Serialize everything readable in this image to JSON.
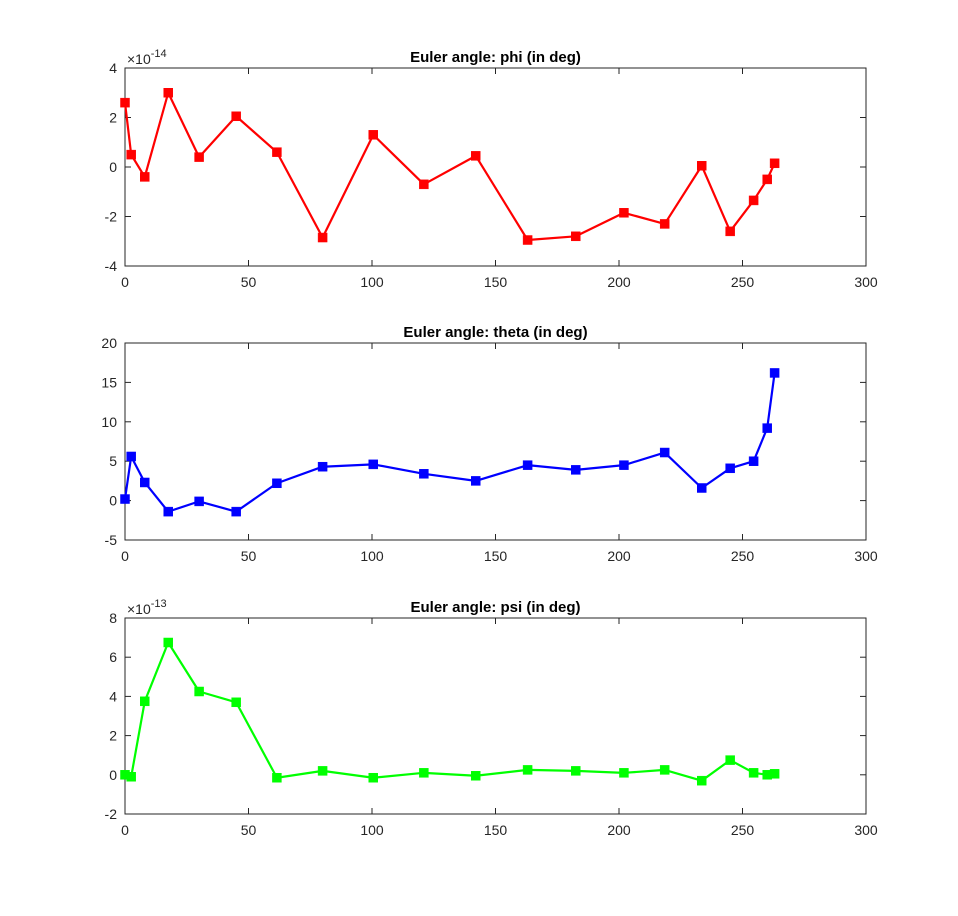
{
  "chart_data": [
    {
      "type": "line",
      "title": "Euler angle: phi (in deg)",
      "xlabel": "",
      "ylabel": "",
      "exponent_label": "×10",
      "exponent_power": "-14",
      "xlim": [
        0,
        300
      ],
      "ylim": [
        -4,
        4
      ],
      "xticks": [
        "0",
        "50",
        "100",
        "150",
        "200",
        "250",
        "300"
      ],
      "yticks": [
        "-4",
        "-2",
        "0",
        "2",
        "4"
      ],
      "color": "#ff0000",
      "marker": "square",
      "grid": false,
      "series": [
        {
          "x": [
            0,
            2.5,
            8,
            17.5,
            30,
            45,
            61.5,
            80,
            100.5,
            121,
            142,
            163,
            182.5,
            202,
            218.5,
            233.5,
            245,
            254.5,
            260,
            263
          ],
          "y": [
            2.6,
            0.5,
            -0.4,
            3.0,
            0.4,
            2.05,
            0.6,
            -2.85,
            1.3,
            -0.7,
            0.45,
            -2.95,
            -2.8,
            -1.85,
            -2.3,
            0.05,
            -2.6,
            -1.35,
            -0.5,
            0.15
          ]
        }
      ]
    },
    {
      "type": "line",
      "title": "Euler angle: theta (in deg)",
      "xlabel": "",
      "ylabel": "",
      "xlim": [
        0,
        300
      ],
      "ylim": [
        -5,
        20
      ],
      "xticks": [
        "0",
        "50",
        "100",
        "150",
        "200",
        "250",
        "300"
      ],
      "yticks": [
        "-5",
        "0",
        "5",
        "10",
        "15",
        "20"
      ],
      "color": "#0000ff",
      "marker": "square",
      "grid": false,
      "series": [
        {
          "x": [
            0,
            2.5,
            8,
            17.5,
            30,
            45,
            61.5,
            80,
            100.5,
            121,
            142,
            163,
            182.5,
            202,
            218.5,
            233.5,
            245,
            254.5,
            260,
            263
          ],
          "y": [
            0.2,
            5.6,
            2.3,
            -1.4,
            -0.1,
            -1.4,
            2.2,
            4.3,
            4.6,
            3.4,
            2.5,
            4.5,
            3.9,
            4.5,
            6.1,
            1.6,
            4.1,
            5.0,
            9.2,
            16.2
          ]
        }
      ]
    },
    {
      "type": "line",
      "title": "Euler angle: psi (in deg)",
      "xlabel": "",
      "ylabel": "",
      "exponent_label": "×10",
      "exponent_power": "-13",
      "xlim": [
        0,
        300
      ],
      "ylim": [
        -2,
        8
      ],
      "xticks": [
        "0",
        "50",
        "100",
        "150",
        "200",
        "250",
        "300"
      ],
      "yticks": [
        "-2",
        "0",
        "2",
        "4",
        "6",
        "8"
      ],
      "color": "#00ff00",
      "marker": "square",
      "grid": false,
      "series": [
        {
          "x": [
            0,
            2.5,
            8,
            17.5,
            30,
            45,
            61.5,
            80,
            100.5,
            121,
            142,
            163,
            182.5,
            202,
            218.5,
            233.5,
            245,
            254.5,
            260,
            263
          ],
          "y": [
            0.0,
            -0.1,
            3.75,
            6.75,
            4.25,
            3.7,
            -0.15,
            0.2,
            -0.15,
            0.1,
            -0.05,
            0.25,
            0.2,
            0.1,
            0.25,
            -0.3,
            0.75,
            0.1,
            0.0,
            0.05
          ]
        }
      ]
    }
  ]
}
